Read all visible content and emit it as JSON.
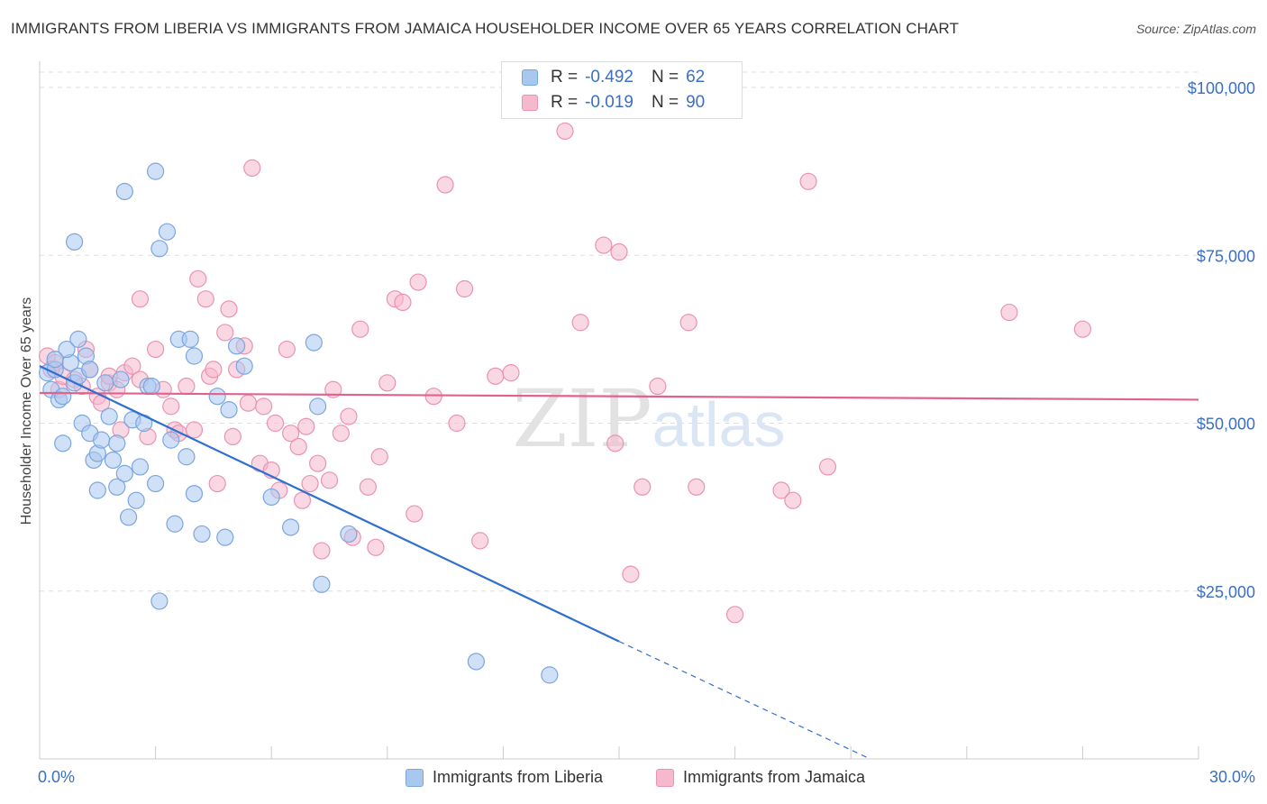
{
  "chart_data": {
    "type": "scatter",
    "title": "IMMIGRANTS FROM LIBERIA VS IMMIGRANTS FROM JAMAICA HOUSEHOLDER INCOME OVER 65 YEARS CORRELATION CHART",
    "source": "Source: ZipAtlas.com",
    "ylabel": "Householder Income Over 65 years",
    "xlabel": "",
    "xlim": [
      0,
      30
    ],
    "ylim": [
      0,
      105000
    ],
    "x_tick_labels": {
      "min": "0.0%",
      "max": "30.0%"
    },
    "y_ticks": [
      {
        "value": 25000,
        "label": "$25,000"
      },
      {
        "value": 50000,
        "label": "$50,000"
      },
      {
        "value": 75000,
        "label": "$75,000"
      },
      {
        "value": 100000,
        "label": "$100,000"
      }
    ],
    "watermark": "ZIPatlas",
    "legend": [
      {
        "name": "Immigrants from Liberia",
        "r_label": "R =",
        "r": "-0.492",
        "n_label": "N =",
        "n": "62"
      },
      {
        "name": "Immigrants from Jamaica",
        "r_label": "R =",
        "r": "-0.019",
        "n_label": "N =",
        "n": "90"
      }
    ],
    "colors": {
      "liberia_fill": "#a9c8f0",
      "liberia_stroke": "#7aa6e0",
      "liberia_line": "#2f6fd0",
      "jamaica_fill": "#f6b8cc",
      "jamaica_stroke": "#ea93b0",
      "jamaica_line": "#e0628e",
      "axis_text": "#3a6fc4"
    },
    "series": [
      {
        "name": "Immigrants from Liberia",
        "trend": {
          "x0": 0.0,
          "y0": 58500,
          "x1": 15.0,
          "y1": 17500,
          "dash_to_x": 21.5
        },
        "points": [
          [
            0.2,
            57500
          ],
          [
            0.3,
            55000
          ],
          [
            0.4,
            58000
          ],
          [
            0.5,
            53500
          ],
          [
            0.6,
            47000
          ],
          [
            0.8,
            59000
          ],
          [
            0.7,
            61000
          ],
          [
            0.9,
            56000
          ],
          [
            1.0,
            62500
          ],
          [
            1.1,
            50000
          ],
          [
            1.2,
            60000
          ],
          [
            1.0,
            57000
          ],
          [
            1.3,
            48500
          ],
          [
            1.4,
            44500
          ],
          [
            1.5,
            40000
          ],
          [
            1.5,
            45500
          ],
          [
            1.6,
            47500
          ],
          [
            1.7,
            56000
          ],
          [
            1.8,
            51000
          ],
          [
            1.9,
            44500
          ],
          [
            2.0,
            47000
          ],
          [
            2.0,
            40500
          ],
          [
            2.1,
            56500
          ],
          [
            2.2,
            42500
          ],
          [
            2.3,
            36000
          ],
          [
            2.4,
            50500
          ],
          [
            2.5,
            38500
          ],
          [
            2.6,
            43500
          ],
          [
            2.7,
            50000
          ],
          [
            2.8,
            55500
          ],
          [
            2.9,
            55500
          ],
          [
            3.0,
            87500
          ],
          [
            2.2,
            84500
          ],
          [
            3.1,
            76000
          ],
          [
            0.9,
            77000
          ],
          [
            3.1,
            23500
          ],
          [
            3.0,
            41000
          ],
          [
            3.3,
            78500
          ],
          [
            3.4,
            47500
          ],
          [
            3.5,
            35000
          ],
          [
            3.6,
            62500
          ],
          [
            3.8,
            45000
          ],
          [
            3.9,
            62500
          ],
          [
            4.0,
            39500
          ],
          [
            4.0,
            60000
          ],
          [
            4.2,
            33500
          ],
          [
            4.6,
            54000
          ],
          [
            4.8,
            33000
          ],
          [
            4.9,
            52000
          ],
          [
            5.1,
            61500
          ],
          [
            5.3,
            58500
          ],
          [
            6.0,
            39000
          ],
          [
            6.5,
            34500
          ],
          [
            7.1,
            62000
          ],
          [
            7.2,
            52500
          ],
          [
            7.3,
            26000
          ],
          [
            8.0,
            33500
          ],
          [
            11.3,
            14500
          ],
          [
            13.2,
            12500
          ],
          [
            1.3,
            58000
          ],
          [
            0.4,
            59500
          ],
          [
            0.6,
            54000
          ]
        ]
      },
      {
        "name": "Immigrants from Jamaica",
        "trend": {
          "x0": 0.0,
          "y0": 54500,
          "x1": 30.0,
          "y1": 53500
        },
        "points": [
          [
            0.2,
            60000
          ],
          [
            0.4,
            59000
          ],
          [
            0.5,
            55000
          ],
          [
            0.6,
            57000
          ],
          [
            0.9,
            56500
          ],
          [
            1.1,
            55500
          ],
          [
            1.3,
            58000
          ],
          [
            1.5,
            54000
          ],
          [
            1.6,
            53000
          ],
          [
            1.8,
            56000
          ],
          [
            2.0,
            55000
          ],
          [
            2.2,
            57500
          ],
          [
            2.4,
            58500
          ],
          [
            2.6,
            68500
          ],
          [
            2.8,
            48000
          ],
          [
            3.0,
            61000
          ],
          [
            3.2,
            55000
          ],
          [
            3.4,
            52500
          ],
          [
            3.5,
            49000
          ],
          [
            3.6,
            48500
          ],
          [
            3.8,
            55500
          ],
          [
            4.0,
            49000
          ],
          [
            4.1,
            71500
          ],
          [
            4.3,
            68500
          ],
          [
            4.4,
            57000
          ],
          [
            4.5,
            58000
          ],
          [
            4.6,
            41000
          ],
          [
            4.8,
            63500
          ],
          [
            4.9,
            67000
          ],
          [
            5.0,
            48000
          ],
          [
            5.1,
            58000
          ],
          [
            5.3,
            61500
          ],
          [
            5.4,
            53000
          ],
          [
            5.5,
            88000
          ],
          [
            5.7,
            44000
          ],
          [
            5.8,
            52500
          ],
          [
            6.0,
            43000
          ],
          [
            6.1,
            50000
          ],
          [
            6.2,
            40000
          ],
          [
            6.4,
            61000
          ],
          [
            6.5,
            48500
          ],
          [
            6.7,
            46500
          ],
          [
            6.8,
            38500
          ],
          [
            6.9,
            49500
          ],
          [
            7.0,
            41000
          ],
          [
            7.2,
            44000
          ],
          [
            7.3,
            31000
          ],
          [
            7.5,
            41500
          ],
          [
            7.6,
            55000
          ],
          [
            7.8,
            48500
          ],
          [
            8.0,
            51000
          ],
          [
            8.1,
            33000
          ],
          [
            8.3,
            64000
          ],
          [
            8.5,
            40500
          ],
          [
            8.7,
            31500
          ],
          [
            8.8,
            45000
          ],
          [
            9.0,
            56000
          ],
          [
            9.2,
            68500
          ],
          [
            9.4,
            68000
          ],
          [
            9.7,
            36500
          ],
          [
            9.8,
            71000
          ],
          [
            10.2,
            54000
          ],
          [
            10.5,
            85500
          ],
          [
            10.8,
            50000
          ],
          [
            11.0,
            70000
          ],
          [
            11.4,
            32500
          ],
          [
            11.8,
            57000
          ],
          [
            12.2,
            57500
          ],
          [
            13.6,
            93500
          ],
          [
            14.0,
            65000
          ],
          [
            14.6,
            76500
          ],
          [
            14.9,
            47000
          ],
          [
            15.0,
            75500
          ],
          [
            15.3,
            27500
          ],
          [
            15.6,
            40500
          ],
          [
            16.0,
            55500
          ],
          [
            16.8,
            65000
          ],
          [
            17.0,
            40500
          ],
          [
            18.0,
            21500
          ],
          [
            19.2,
            40000
          ],
          [
            19.5,
            38500
          ],
          [
            19.9,
            86000
          ],
          [
            20.4,
            43500
          ],
          [
            25.1,
            66500
          ],
          [
            27.0,
            64000
          ],
          [
            2.6,
            56500
          ],
          [
            1.8,
            57000
          ],
          [
            2.1,
            49000
          ],
          [
            1.2,
            61000
          ],
          [
            0.3,
            58000
          ]
        ]
      }
    ]
  }
}
